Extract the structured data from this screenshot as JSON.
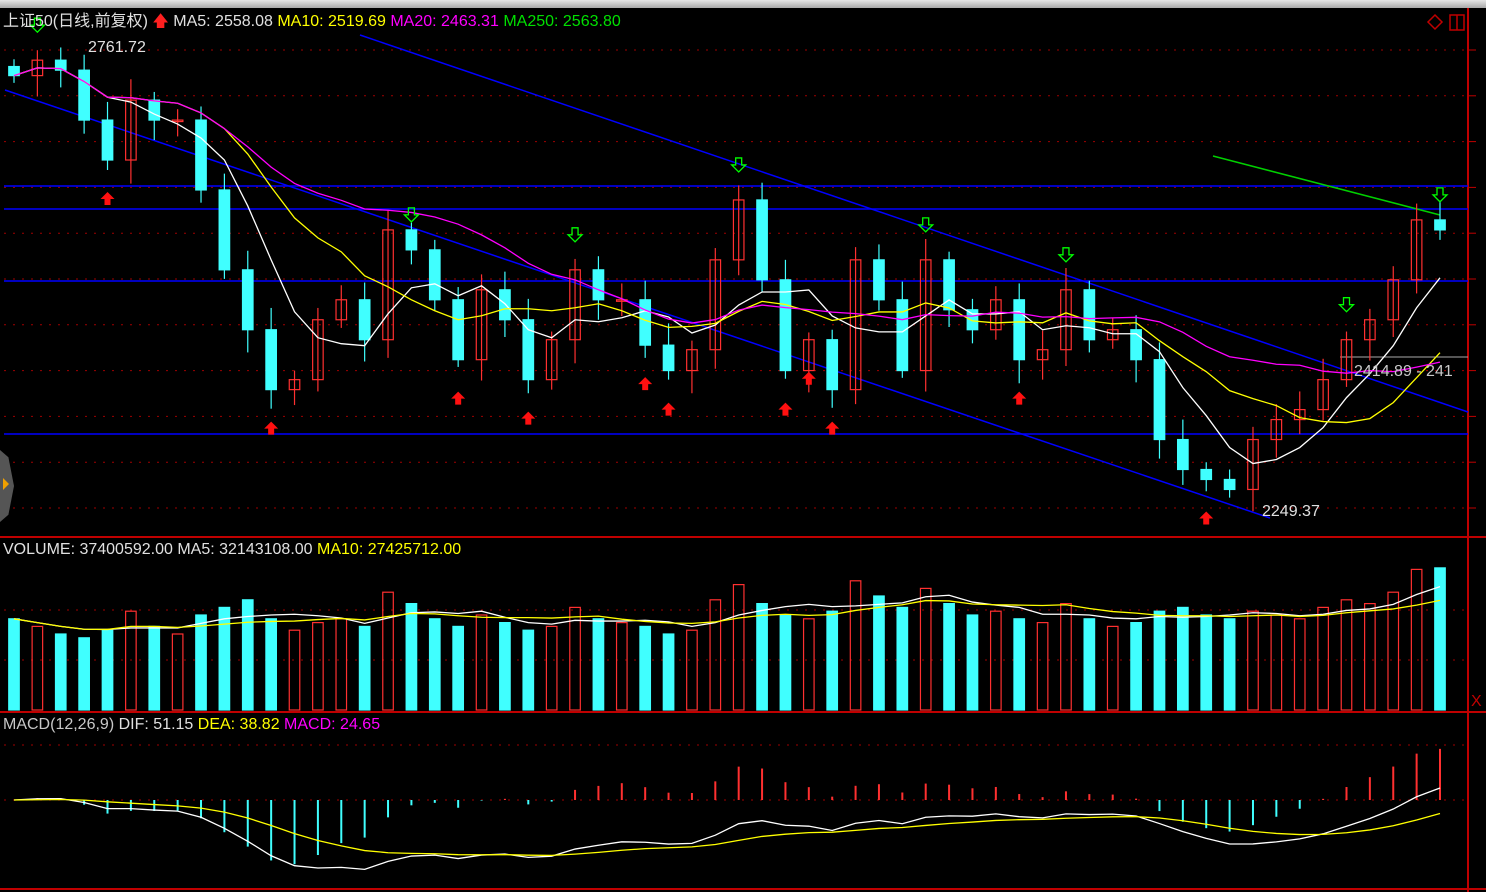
{
  "header": {
    "title": "上证50(日线,前复权)",
    "ma5": "MA5: 2558.08",
    "ma10": "MA10: 2519.69",
    "ma20": "MA20: 2463.31",
    "ma250": "MA250: 2563.80",
    "high_label": "2761.72",
    "low_label": "2249.37",
    "cursor_label": "2414.89 - 241"
  },
  "volume_header": {
    "volume": "VOLUME: 37400592.00",
    "ma5": "MA5: 32143108.00",
    "ma10": "MA10: 27425712.00"
  },
  "macd_header": {
    "name": "MACD(12,26,9)",
    "dif": "DIF: 51.15",
    "dea": "DEA: 38.82",
    "macd": "MACD: 24.65"
  },
  "colors": {
    "up": "#ff3030",
    "down": "#40ffff",
    "ma5": "#ffffff",
    "ma10": "#ffff00",
    "ma20": "#ff00ff",
    "grid": "#a00000",
    "trend": "#0000ff",
    "ma250": "#00d000"
  },
  "chart_data": {
    "type": "candlestick",
    "ylim": [
      2249.37,
      2761.72
    ],
    "close": [
      2728,
      2745,
      2734,
      2679,
      2635,
      2701,
      2679,
      2679,
      2602,
      2514,
      2448,
      2382,
      2393,
      2459,
      2481,
      2437,
      2558,
      2536,
      2481,
      2415,
      2492,
      2459,
      2393,
      2437,
      2514,
      2481,
      2481,
      2431,
      2403,
      2426,
      2525,
      2591,
      2503,
      2403,
      2437,
      2382,
      2525,
      2481,
      2403,
      2525,
      2470,
      2448,
      2481,
      2415,
      2426,
      2492,
      2437,
      2448,
      2415,
      2327,
      2294,
      2283,
      2272,
      2327,
      2349,
      2360,
      2393,
      2437,
      2459,
      2503,
      2569,
      2558
    ],
    "volume_millions": [
      24,
      22,
      20,
      19,
      21,
      26,
      22,
      20,
      25,
      27,
      29,
      24,
      21,
      23,
      24,
      22,
      31,
      28,
      24,
      22,
      25,
      23,
      21,
      22,
      27,
      24,
      23,
      22,
      20,
      21,
      29,
      33,
      28,
      25,
      24,
      26,
      34,
      30,
      27,
      32,
      28,
      25,
      26,
      24,
      23,
      28,
      24,
      22,
      23,
      26,
      27,
      25,
      24,
      26,
      25,
      24,
      27,
      29,
      28,
      31,
      37,
      37.4
    ],
    "buy_signals": [
      4,
      11,
      19,
      22,
      27,
      28,
      33,
      34,
      35,
      43,
      51
    ],
    "sell_signals": [
      1,
      17,
      24,
      31,
      39,
      45,
      57,
      61
    ]
  }
}
